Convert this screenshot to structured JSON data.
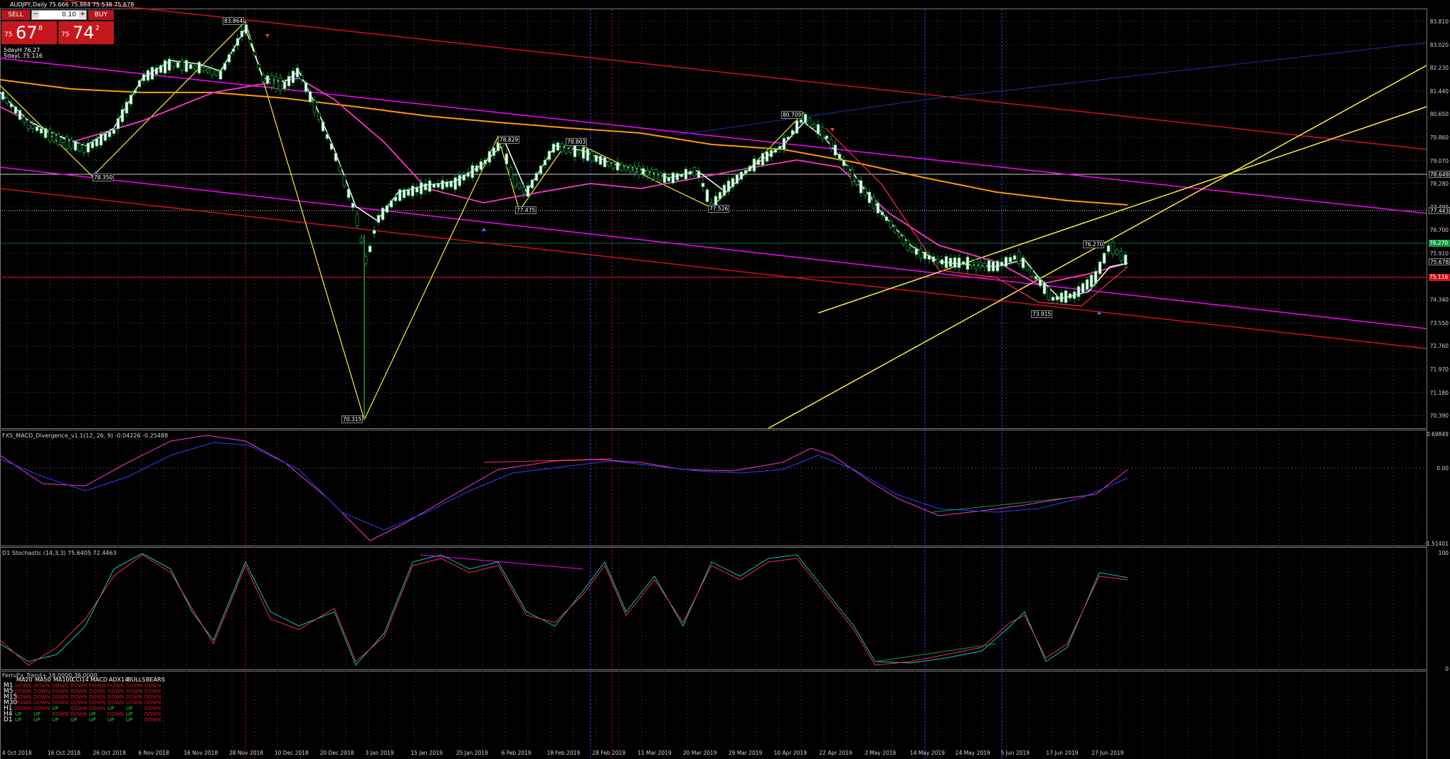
{
  "window_title": "AUDJPY,Daily  75.666 75.884 75.538 75.678",
  "trade_panel": {
    "sell_label": "SELL",
    "buy_label": "BUY",
    "lot_value": "0.10",
    "lot_dec": "−",
    "lot_inc": "+",
    "bid_small": "75",
    "bid_big": "67",
    "bid_sup": "8",
    "ask_small": "75",
    "ask_big": "74",
    "ask_sup": "2"
  },
  "ma_labels": [
    "5dayH 76.27",
    "5dayL 75.116"
  ],
  "price_axis": [
    "83.810",
    "83.020",
    "82.230",
    "81.440",
    "80.650",
    "79.860",
    "79.070",
    "78.280",
    "77.490",
    "76.700",
    "75.910",
    "75.120",
    "74.340",
    "73.550",
    "72.760",
    "71.970",
    "71.180",
    "70.390"
  ],
  "price_tags": [
    {
      "text": "78.649",
      "bg": "#000",
      "fg": "#fff"
    },
    {
      "text": "77.443",
      "bg": "#000",
      "fg": "#fff"
    },
    {
      "text": "76.270",
      "bg": "#0f9d3c",
      "fg": "#fff"
    },
    {
      "text": "75.678",
      "bg": "#000",
      "fg": "#fff"
    },
    {
      "text": "75.116",
      "bg": "#d0101a",
      "fg": "#fff"
    }
  ],
  "pivot_labels": [
    "83.864",
    "78.350",
    "70.315",
    "78.829",
    "78.803",
    "77.475",
    "77.526",
    "80.709",
    "76.270",
    "73.915"
  ],
  "macd": {
    "title": "FXS_MACD_Divergence_v1.1(12, 26, 9) -0.04226 -0.25488",
    "axis": [
      "0.69849",
      "0.00",
      "-1.51401"
    ]
  },
  "stochastic": {
    "title": "D1 Stochastic (14,3,3) 75.6405 72.4463",
    "axis": [
      "100",
      "0"
    ]
  },
  "trend_panel": {
    "title": "FerruFx_Trend+ 18.0000 38.0000",
    "headers": [
      "MA20",
      "MA50",
      "MA100",
      "CCI14",
      "MACD",
      "ADX14",
      "BULLS",
      "BEARS"
    ],
    "rows": [
      {
        "tf": "M1",
        "cells": [
          "DOWN",
          "DOWN",
          "DOWN",
          "DOWN",
          "DOWN",
          "DOWN",
          "DOWN",
          "DOWN"
        ]
      },
      {
        "tf": "M5",
        "cells": [
          "DOWN",
          "DOWN",
          "DOWN",
          "DOWN",
          "DOWN",
          "DOWN",
          "DOWN",
          "DOWN"
        ]
      },
      {
        "tf": "M15",
        "cells": [
          "DOWN",
          "DOWN",
          "DOWN",
          "DOWN",
          "DOWN",
          "DOWN",
          "DOWN",
          "DOWN"
        ]
      },
      {
        "tf": "M30",
        "cells": [
          "DOWN",
          "DOWN",
          "DOWN",
          "DOWN",
          "DOWN",
          "DOWN",
          "DOWN",
          "DOWN"
        ]
      },
      {
        "tf": "H1",
        "cells": [
          "DOWN",
          "DOWN",
          "UP",
          "DOWN",
          "DOWN",
          "UP",
          "UP",
          "DOWN"
        ]
      },
      {
        "tf": "H4",
        "cells": [
          "UP",
          "UP",
          "DOWN",
          "DOWN",
          "UP",
          "DOWN",
          "UP",
          "DOWN"
        ]
      },
      {
        "tf": "D1",
        "cells": [
          "UP",
          "UP",
          "UP",
          "UP",
          "UP",
          "UP",
          "UP",
          "DOWN"
        ]
      }
    ]
  },
  "date_axis": [
    "4 Oct 2018",
    "16 Oct 2018",
    "26 Oct 2018",
    "6 Nov 2018",
    "16 Nov 2018",
    "28 Nov 2018",
    "10 Dec 2018",
    "20 Dec 2018",
    "3 Jan 2019",
    "15 Jan 2019",
    "25 Jan 2019",
    "6 Feb 2019",
    "18 Feb 2019",
    "28 Feb 2019",
    "11 Mar 2019",
    "20 Mar 2019",
    "29 Mar 2019",
    "10 Apr 2019",
    "22 Apr 2019",
    "2 May 2019",
    "14 May 2019",
    "24 May 2019",
    "5 Jun 2019",
    "17 Jun 2019",
    "27 Jun 2019"
  ],
  "colors": {
    "up_candle": "#ffffff",
    "down_candle": "#000000",
    "grid": "#2a2a2a",
    "magenta": "#ff00ff",
    "orange": "#ff9900",
    "red_line": "#e0102a",
    "yellow": "#ffeb3b",
    "blue": "#2340ff"
  }
}
